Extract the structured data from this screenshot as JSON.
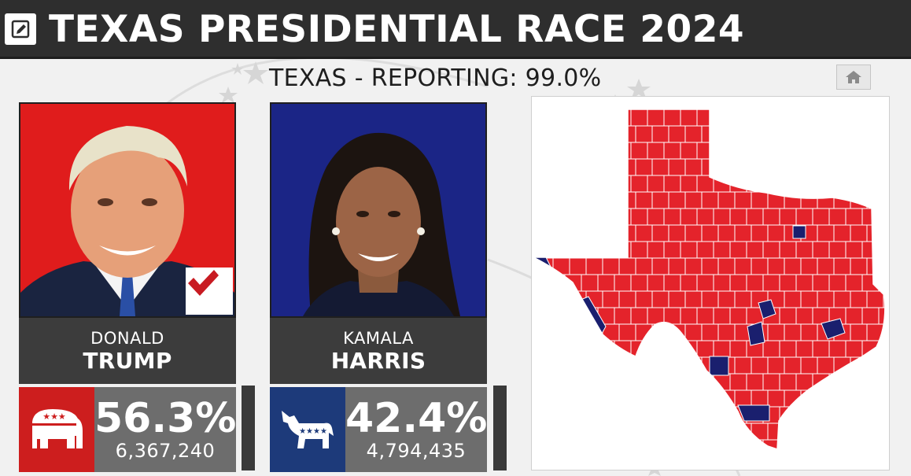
{
  "header": {
    "title": "TEXAS PRESIDENTIAL RACE 2024",
    "edit_icon": "pencil-icon"
  },
  "reporting": "TEXAS - REPORTING: 99.0%",
  "home_icon": "home-icon",
  "candidates": [
    {
      "first_name": "DONALD",
      "last_name": "TRUMP",
      "percent": "56.3%",
      "votes": "6,367,240",
      "party": "Republican",
      "party_icon": "elephant-icon",
      "winner": true,
      "color": "#e01c1c"
    },
    {
      "first_name": "KAMALA",
      "last_name": "HARRIS",
      "percent": "42.4%",
      "votes": "4,794,435",
      "party": "Democratic",
      "party_icon": "donkey-icon",
      "winner": false,
      "color": "#1b2586"
    }
  ],
  "map": {
    "state": "Texas",
    "republican_color": "#e4232b",
    "democratic_color": "#1a1f6e",
    "county_line_color": "#ffffff"
  },
  "colors": {
    "header_bg": "#2e2e2e",
    "republican": "#cd1e1e",
    "democratic": "#1d3a7a",
    "plate_bg": "#3c3c3c",
    "vote_bg": "#6d6d6d"
  }
}
